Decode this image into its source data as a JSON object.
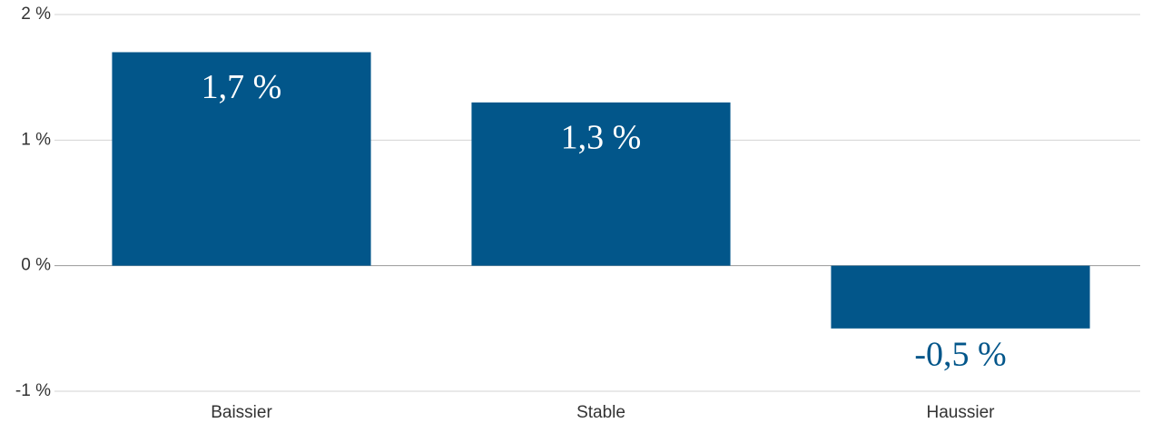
{
  "chart_data": {
    "type": "bar",
    "categories": [
      "Baissier",
      "Stable",
      "Haussier"
    ],
    "values": [
      1.7,
      1.3,
      -0.5
    ],
    "value_labels": [
      "1,7 %",
      "1,3 %",
      "-0,5 %"
    ],
    "color": "#02568a",
    "ylim": [
      -1,
      2
    ],
    "yticks": [
      {
        "value": -1,
        "label": "-1 %"
      },
      {
        "value": 0,
        "label": "0 %"
      },
      {
        "value": 1,
        "label": "1 %"
      },
      {
        "value": 2,
        "label": "2 %"
      }
    ],
    "grid": true
  }
}
